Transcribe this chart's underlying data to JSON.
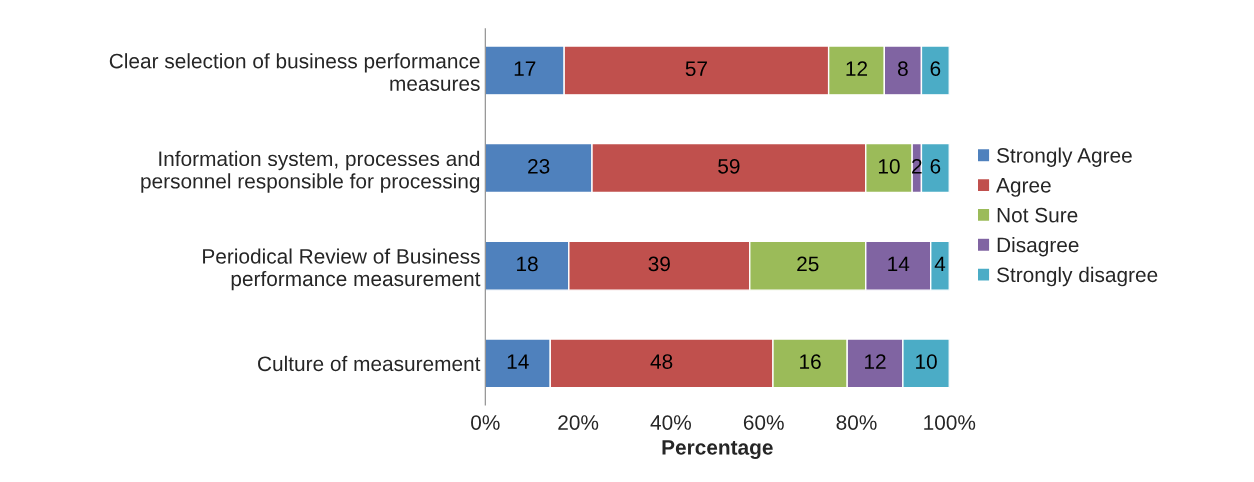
{
  "chart_data": {
    "type": "bar",
    "orientation": "horizontal",
    "stacked": true,
    "xlabel": "Percentage",
    "categories": [
      "Clear selection of business performance\nmeasures",
      "Information system, processes and\npersonnel responsible for processing",
      "Periodical Review of Business\nperformance measurement",
      "Culture of measurement"
    ],
    "series": [
      {
        "name": "Strongly Agree",
        "color": "#4f81bd",
        "values": [
          17,
          23,
          18,
          14
        ]
      },
      {
        "name": "Agree",
        "color": "#c0504d",
        "values": [
          57,
          59,
          39,
          48
        ]
      },
      {
        "name": "Not Sure",
        "color": "#9bbb59",
        "values": [
          12,
          10,
          25,
          16
        ]
      },
      {
        "name": "Disagree",
        "color": "#8064a2",
        "values": [
          8,
          2,
          14,
          12
        ]
      },
      {
        "name": "Strongly disagree",
        "color": "#4bacc6",
        "values": [
          6,
          6,
          4,
          10
        ]
      }
    ],
    "xlim": [
      0,
      100
    ],
    "xticks": [
      {
        "value": 0,
        "label": "0%"
      },
      {
        "value": 20,
        "label": "20%"
      },
      {
        "value": 40,
        "label": "40%"
      },
      {
        "value": 60,
        "label": "60%"
      },
      {
        "value": 80,
        "label": "80%"
      },
      {
        "value": 100,
        "label": "100%"
      }
    ],
    "data_labels": true,
    "legend": "right",
    "grid": false
  }
}
